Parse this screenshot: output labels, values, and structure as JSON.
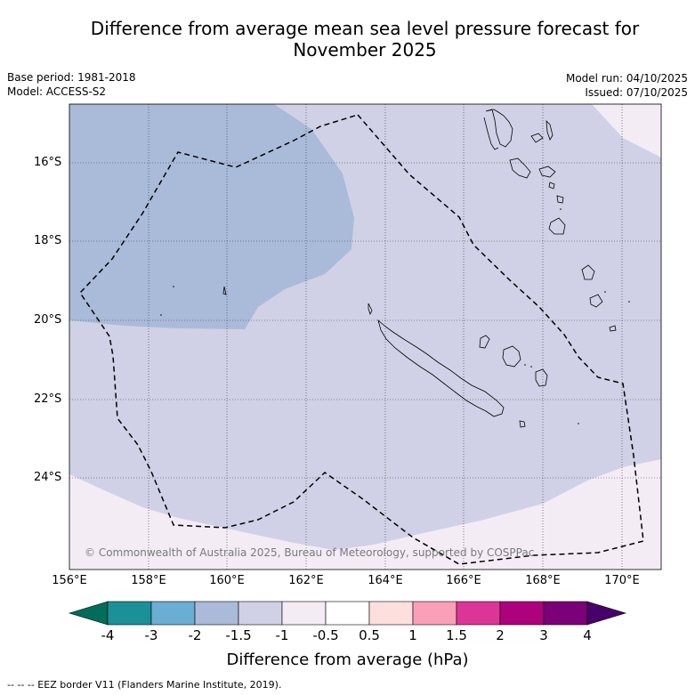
{
  "title_line1": "Difference from average mean sea level pressure forecast for",
  "title_line2": "November 2025",
  "base_period": "Base period: 1981-2018",
  "model": "Model: ACCESS-S2",
  "model_run": "Model run: 04/10/2025",
  "issued": "Issued: 07/10/2025",
  "lat_labels": [
    "16°S",
    "18°S",
    "20°S",
    "22°S",
    "24°S"
  ],
  "lon_labels": [
    "156°E",
    "158°E",
    "160°E",
    "162°E",
    "164°E",
    "166°E",
    "168°E",
    "170°E"
  ],
  "copyright": "© Commonwealth of Australia 2025, Bureau of Meteorology, supported by COSPPac",
  "colorbar": {
    "ticks": [
      "-4",
      "-3",
      "-2",
      "-1.5",
      "-1",
      "-0.5",
      "0.5",
      "1",
      "1.5",
      "2",
      "3",
      "4"
    ],
    "colors": [
      "#1b9097",
      "#6aaed3",
      "#a9bbd9",
      "#d0d1e6",
      "#f3ecf5",
      "#ffffff",
      "#fde0dd",
      "#f9a0b8",
      "#dd3497",
      "#ae017e",
      "#7a0177"
    ],
    "under_color": "#016c59",
    "over_color": "#49006a",
    "label": "Difference from average (hPa)"
  },
  "map_colors": {
    "band_minus2": "#a9bbd9",
    "band_minus1_5": "#d0d1e6",
    "band_minus1": "#f3ecf5"
  },
  "eez_note": "--  --  -- EEZ border V11 (Flanders Marine Institute, 2019)."
}
